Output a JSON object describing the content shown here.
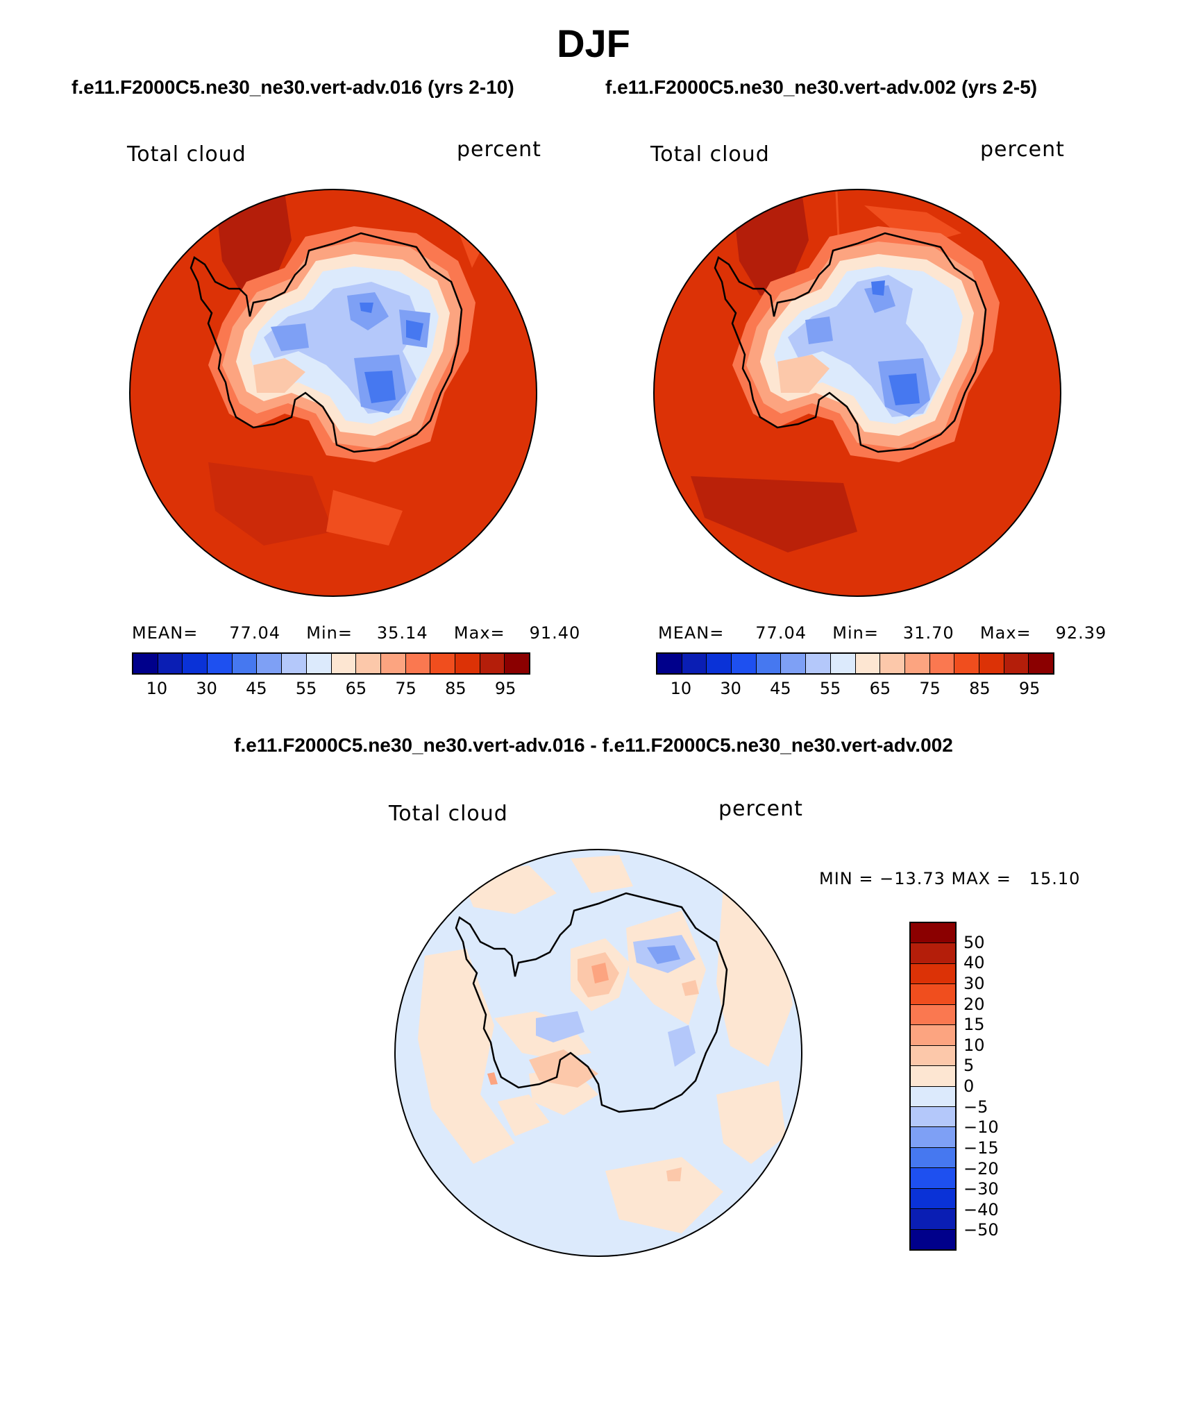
{
  "title": "DJF",
  "panels": [
    {
      "case_title": "f.e11.F2000C5.ne30_ne30.vert-adv.016 (yrs 2-10)",
      "variable": "Total cloud",
      "units": "percent",
      "mean_label": "MEAN=",
      "mean_value": "77.04",
      "min_label": "Min=",
      "min_value": "35.14",
      "max_label": "Max=",
      "max_value": "91.40"
    },
    {
      "case_title": "f.e11.F2000C5.ne30_ne30.vert-adv.002 (yrs 2-5)",
      "variable": "Total cloud",
      "units": "percent",
      "mean_label": "MEAN=",
      "mean_value": "77.04",
      "min_label": "Min=",
      "min_value": "31.70",
      "max_label": "Max=",
      "max_value": "92.39"
    }
  ],
  "diff": {
    "title": "f.e11.F2000C5.ne30_ne30.vert-adv.016 - f.e11.F2000C5.ne30_ne30.vert-adv.002",
    "variable": "Total cloud",
    "units": "percent",
    "minmax_text": "MIN = −13.73 MAX =   15.10"
  },
  "colorbar_main": {
    "colors": [
      "#00008b",
      "#0a1eb4",
      "#0a32d7",
      "#1e50f0",
      "#4678f0",
      "#7ea0f5",
      "#b4c8fa",
      "#dceafc",
      "#fde6d2",
      "#fcc8aa",
      "#fca480",
      "#fa7850",
      "#f04e1e",
      "#dc3206",
      "#b41e0a",
      "#8b0000"
    ],
    "ticks": [
      "10",
      "30",
      "45",
      "55",
      "65",
      "75",
      "85",
      "95"
    ]
  },
  "colorbar_diff": {
    "colors_top_to_bottom": [
      "#8b0000",
      "#b41e0a",
      "#dc3206",
      "#f04e1e",
      "#fa7850",
      "#fca480",
      "#fcc8aa",
      "#fde6d2",
      "#dceafc",
      "#b4c8fa",
      "#7ea0f5",
      "#4678f0",
      "#1e50f0",
      "#0a32d7",
      "#0a1eb4",
      "#00008b"
    ],
    "ticks": [
      "50",
      "40",
      "30",
      "20",
      "15",
      "10",
      "5",
      "0",
      "−5",
      "−10",
      "−15",
      "−20",
      "−30",
      "−40",
      "−50"
    ]
  }
}
